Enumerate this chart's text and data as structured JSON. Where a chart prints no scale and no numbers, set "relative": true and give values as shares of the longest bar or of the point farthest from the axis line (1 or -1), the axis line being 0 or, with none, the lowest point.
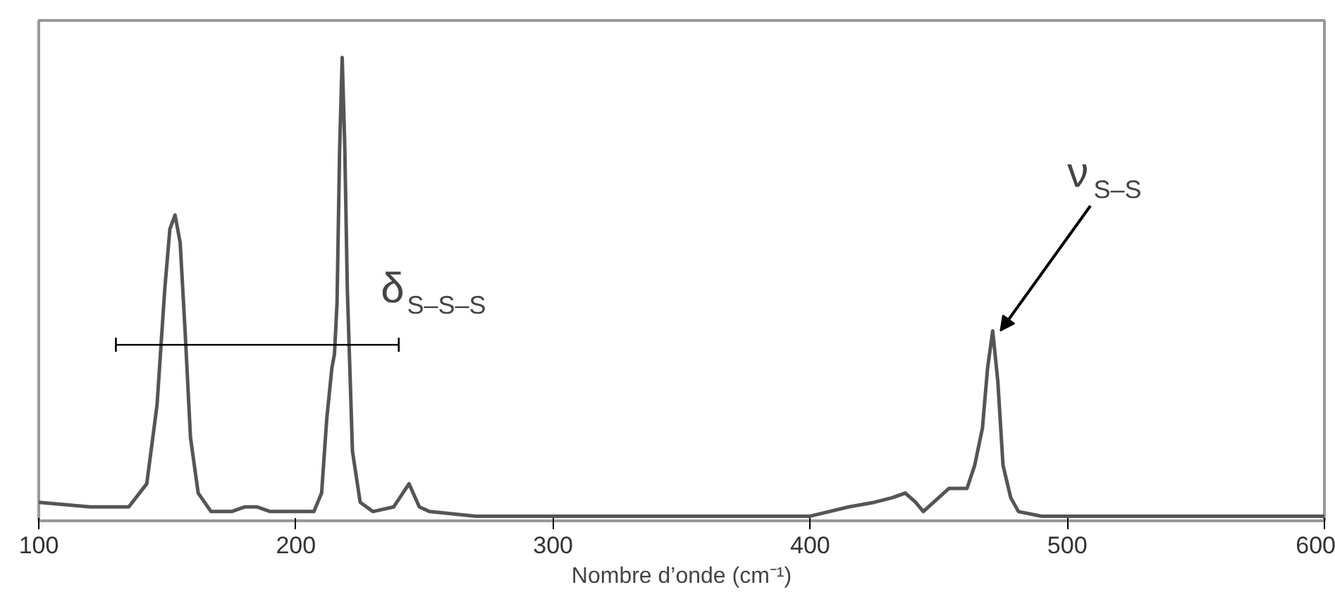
{
  "chart_data": {
    "type": "line",
    "relative": true,
    "xlabel": "Nombre d’onde (cm⁻¹)",
    "xlim": [
      100,
      600
    ],
    "xticks": [
      100,
      200,
      300,
      400,
      500,
      600
    ],
    "grid": false,
    "series": [
      {
        "color": "#555555",
        "x": [
          100,
          120,
          135,
          142,
          146,
          149,
          151,
          153,
          155,
          157,
          159,
          162,
          167,
          175,
          180,
          185,
          190,
          200,
          207,
          210,
          212,
          214,
          215,
          216,
          217,
          218,
          219,
          220,
          222,
          225,
          230,
          238,
          244,
          248,
          252,
          270,
          300,
          350,
          400,
          415,
          425,
          432,
          437,
          441,
          444,
          450,
          454,
          461,
          464,
          467,
          469,
          471,
          473,
          475,
          478,
          481,
          490,
          520,
          560,
          600
        ],
        "values": [
          0.04,
          0.03,
          0.03,
          0.08,
          0.25,
          0.5,
          0.63,
          0.66,
          0.6,
          0.4,
          0.18,
          0.06,
          0.02,
          0.02,
          0.03,
          0.03,
          0.02,
          0.02,
          0.02,
          0.06,
          0.22,
          0.33,
          0.36,
          0.47,
          0.8,
          1.0,
          0.81,
          0.5,
          0.15,
          0.04,
          0.02,
          0.03,
          0.08,
          0.03,
          0.02,
          0.01,
          0.01,
          0.01,
          0.01,
          0.03,
          0.04,
          0.05,
          0.06,
          0.04,
          0.02,
          0.05,
          0.07,
          0.07,
          0.12,
          0.2,
          0.33,
          0.41,
          0.3,
          0.12,
          0.05,
          0.02,
          0.01,
          0.01,
          0.01,
          0.01
        ]
      }
    ],
    "annotations": [
      "δ$_{S–S–S}$",
      {
        "text": "ν$_{S–S}$",
        "x": 474,
        "y": 0.41
      }
    ]
  }
}
